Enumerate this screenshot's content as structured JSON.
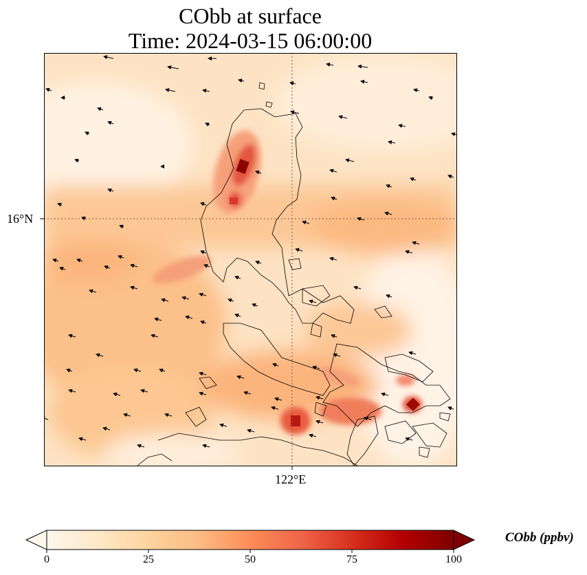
{
  "title": {
    "line1": "CObb at surface",
    "line2": "Time: 2024-03-15 06:00:00"
  },
  "map": {
    "lat_label": "16°N",
    "lon_label": "122°E",
    "gridlines": "dotted",
    "coastline_color": "#000000",
    "wind_vector_color": "#000000"
  },
  "colorbar": {
    "label": "CObb (ppbv)",
    "colormap": "OrRd",
    "ticks": [
      "0",
      "25",
      "50",
      "75",
      "100"
    ],
    "min": 0,
    "max": 100,
    "extend": "both",
    "colors": [
      "#fff7ec",
      "#fee8c8",
      "#fdd49e",
      "#fdbb84",
      "#fc8d59",
      "#ef6548",
      "#d7301f",
      "#b30000",
      "#7f0000"
    ]
  }
}
